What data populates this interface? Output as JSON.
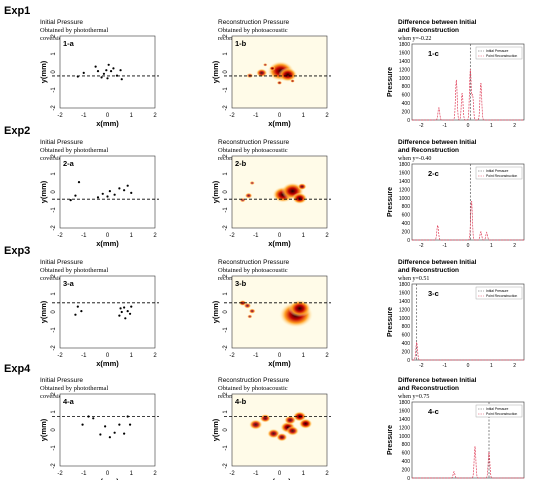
{
  "figure": {
    "experiments": [
      {
        "label": "Exp1",
        "initial": {
          "title": "Initial Pressure",
          "subtitle_lines": [
            "Obtained by photothermal",
            "coversion"
          ],
          "panel": "1-a"
        },
        "reconstruction": {
          "title": "Reconstruction Pressure",
          "subtitle_lines": [
            "Obtained by photoacoustic",
            "reconstruction"
          ],
          "panel": "1-b"
        },
        "difference": {
          "title_lines": [
            "Difference between Initial",
            "and Reconstruction"
          ],
          "note": "when y=-0.22",
          "panel": "1-c"
        },
        "line_y": -0.22,
        "points": [
          [
            -1.25,
            -0.25
          ],
          [
            -1.0,
            -0.05
          ],
          [
            -0.5,
            0.3
          ],
          [
            -0.4,
            0.05
          ],
          [
            -0.25,
            -0.3
          ],
          [
            -0.15,
            -0.1
          ],
          [
            -0.05,
            0.1
          ],
          [
            0.0,
            -0.35
          ],
          [
            0.05,
            0.4
          ],
          [
            0.15,
            0.05
          ],
          [
            0.25,
            0.2
          ],
          [
            0.4,
            -0.2
          ],
          [
            0.55,
            0.1
          ],
          [
            0.6,
            -0.4
          ]
        ],
        "blobs": [
          [
            -1.25,
            -0.2,
            0.09,
            0.7
          ],
          [
            -0.75,
            -0.05,
            0.15,
            0.9
          ],
          [
            -0.6,
            0.4,
            0.06,
            0.7
          ],
          [
            0.0,
            -0.6,
            0.07,
            0.8
          ],
          [
            0.05,
            0.05,
            0.35,
            1.0
          ],
          [
            0.35,
            -0.15,
            0.25,
            1.0
          ],
          [
            0.55,
            -0.5,
            0.06,
            0.8
          ],
          [
            -0.3,
            0.2,
            0.08,
            0.9
          ]
        ]
      },
      {
        "label": "Exp2",
        "initial": {
          "title": "Initial Pressure",
          "subtitle_lines": [
            "Obtained by photothermal",
            "coversion"
          ],
          "panel": "2-a"
        },
        "reconstruction": {
          "title": "Reconstruction Pressure",
          "subtitle_lines": [
            "Obtained by photoacoustic",
            "reconstruction"
          ],
          "panel": "2-b"
        },
        "difference": {
          "title_lines": [
            "Difference between Initial",
            "and Reconstruction"
          ],
          "note": "when y=-0.40",
          "panel": "2-c"
        },
        "line_y": -0.4,
        "points": [
          [
            -1.55,
            -0.45
          ],
          [
            -1.35,
            -0.2
          ],
          [
            -1.2,
            0.55
          ],
          [
            -0.4,
            -0.3
          ],
          [
            -0.2,
            -0.1
          ],
          [
            0.0,
            -0.25
          ],
          [
            0.1,
            0.05
          ],
          [
            0.3,
            -0.15
          ],
          [
            0.5,
            0.2
          ],
          [
            0.7,
            0.1
          ],
          [
            0.85,
            0.35
          ],
          [
            1.0,
            -0.05
          ]
        ],
        "blobs": [
          [
            -1.55,
            -0.45,
            0.08,
            0.7
          ],
          [
            -1.3,
            -0.2,
            0.1,
            0.8
          ],
          [
            -1.15,
            0.5,
            0.07,
            0.7
          ],
          [
            0.15,
            -0.15,
            0.28,
            1.0
          ],
          [
            0.55,
            0.05,
            0.3,
            1.0
          ],
          [
            0.85,
            -0.35,
            0.2,
            1.0
          ],
          [
            0.95,
            0.3,
            0.12,
            0.9
          ]
        ]
      },
      {
        "label": "Exp3",
        "initial": {
          "title": "Initial Pressure",
          "subtitle_lines": [
            "Obtained by photothermal",
            "coversion"
          ],
          "panel": "3-a"
        },
        "reconstruction": {
          "title": "Reconstruction Pressure",
          "subtitle_lines": [
            "Obtained by photoacoustic",
            "reconstruction"
          ],
          "panel": "3-b"
        },
        "difference": {
          "title_lines": [
            "Difference between Initial",
            "and Reconstruction"
          ],
          "note": "when y=0.51",
          "panel": "3-c"
        },
        "line_y": 0.51,
        "points": [
          [
            -1.35,
            -0.15
          ],
          [
            -1.1,
            0.05
          ],
          [
            -1.25,
            0.3
          ],
          [
            0.5,
            -0.2
          ],
          [
            0.6,
            0.0
          ],
          [
            0.75,
            -0.35
          ],
          [
            0.85,
            0.05
          ],
          [
            0.95,
            -0.1
          ],
          [
            0.7,
            0.25
          ],
          [
            1.0,
            0.3
          ],
          [
            0.55,
            0.2
          ]
        ],
        "blobs": [
          [
            -1.55,
            0.5,
            0.1,
            0.9
          ],
          [
            -1.35,
            0.35,
            0.1,
            0.8
          ],
          [
            -1.15,
            0.05,
            0.09,
            0.8
          ],
          [
            -1.25,
            -0.25,
            0.07,
            0.7
          ],
          [
            0.7,
            -0.15,
            0.45,
            1.0
          ],
          [
            0.85,
            0.2,
            0.3,
            1.0
          ]
        ]
      },
      {
        "label": "Exp4",
        "initial": {
          "title": "Initial Pressure",
          "subtitle_lines": [
            "Obtained by photothermal",
            "coversion"
          ],
          "panel": "4-a"
        },
        "reconstruction": {
          "title": "Reconstruction Pressure",
          "subtitle_lines": [
            "Obtained by photoacoustic",
            "reconstruction"
          ],
          "panel": "4-b"
        },
        "difference": {
          "title_lines": [
            "Difference between Initial",
            "and Reconstruction"
          ],
          "note": "when y=0.75",
          "panel": "4-c"
        },
        "line_y": 0.75,
        "points": [
          [
            -1.05,
            0.3
          ],
          [
            -0.8,
            0.75
          ],
          [
            -0.6,
            0.65
          ],
          [
            -0.3,
            -0.25
          ],
          [
            -0.1,
            0.2
          ],
          [
            0.1,
            -0.4
          ],
          [
            0.3,
            -0.15
          ],
          [
            0.5,
            0.3
          ],
          [
            0.7,
            -0.2
          ],
          [
            0.85,
            0.75
          ],
          [
            0.95,
            0.3
          ]
        ],
        "blobs": [
          [
            -1.0,
            0.3,
            0.18,
            0.9
          ],
          [
            -0.6,
            0.65,
            0.15,
            0.9
          ],
          [
            -0.25,
            -0.2,
            0.17,
            0.9
          ],
          [
            0.1,
            -0.4,
            0.15,
            0.9
          ],
          [
            0.35,
            0.15,
            0.2,
            1.0
          ],
          [
            0.55,
            -0.05,
            0.17,
            0.9
          ],
          [
            0.85,
            0.75,
            0.18,
            1.0
          ],
          [
            1.1,
            0.35,
            0.18,
            1.0
          ],
          [
            0.45,
            0.55,
            0.16,
            0.9
          ]
        ]
      }
    ],
    "axis_labels": {
      "x": "x(mm)",
      "y": "y(mm)",
      "pressure": "Pressure"
    },
    "legend": {
      "initial": "Initial Pressure",
      "reconstruction": "Point Reconstruction"
    },
    "colors": {
      "reconstruction_line": "#e0405a",
      "initial_line": "#555555",
      "heat_hot": "#ffffe0",
      "heat_mid": "#ff9a1a",
      "heat_low": "#c00000",
      "heat_core": "#220000"
    }
  },
  "chart_data": [
    {
      "type": "scatter",
      "panels": [
        "1-a",
        "2-a",
        "3-a",
        "4-a"
      ],
      "title": "Initial Pressure",
      "xlabel": "x(mm)",
      "ylabel": "y(mm)",
      "xlim": [
        -2,
        2
      ],
      "ylim": [
        2,
        -2
      ],
      "xticks": [
        -2,
        -1,
        0,
        1,
        2
      ],
      "yticks": [
        -2,
        -1,
        0,
        1,
        2
      ],
      "grid": false
    },
    {
      "type": "heatmap",
      "panels": [
        "1-b",
        "2-b",
        "3-b",
        "4-b"
      ],
      "title": "Reconstruction Pressure",
      "xlabel": "x(mm)",
      "ylabel": "y(mm)",
      "xlim": [
        -2,
        2
      ],
      "ylim": [
        2,
        -2
      ],
      "xticks": [
        -2,
        -1,
        0,
        1,
        2
      ],
      "yticks": [
        -2,
        -1,
        0,
        1,
        2
      ]
    },
    {
      "type": "line",
      "panel": "1-c",
      "xlabel": "",
      "ylabel": "Pressure",
      "xlim": [
        -2.4,
        2.4
      ],
      "ylim": [
        0,
        1800
      ],
      "yticks": [
        0,
        200,
        400,
        600,
        800,
        1000,
        1200,
        1400,
        1600,
        1800
      ],
      "xticks": [
        -2,
        -1,
        0,
        1,
        2
      ],
      "series": [
        {
          "name": "Initial Pressure",
          "x": [
            0.1,
            0.1
          ],
          "y": [
            0,
            1800
          ]
        },
        {
          "name": "Point Reconstruction",
          "peaks": [
            [
              -1.25,
              300
            ],
            [
              -0.5,
              950
            ],
            [
              -0.25,
              650
            ],
            [
              0.1,
              1200
            ],
            [
              0.2,
              580
            ],
            [
              0.55,
              900
            ]
          ]
        }
      ]
    },
    {
      "type": "line",
      "panel": "2-c",
      "xlabel": "",
      "ylabel": "Pressure",
      "xlim": [
        -2.4,
        2.4
      ],
      "ylim": [
        0,
        1800
      ],
      "yticks": [
        0,
        200,
        400,
        600,
        800,
        1000,
        1200,
        1400,
        1600,
        1800
      ],
      "xticks": [
        -2,
        -1,
        0,
        1,
        2
      ],
      "series": [
        {
          "name": "Initial Pressure",
          "x": [
            0.1,
            0.1
          ],
          "y": [
            0,
            1800
          ]
        },
        {
          "name": "Point Reconstruction",
          "peaks": [
            [
              -1.3,
              350
            ],
            [
              0.15,
              950
            ],
            [
              0.55,
              200
            ],
            [
              0.8,
              180
            ]
          ]
        }
      ]
    },
    {
      "type": "line",
      "panel": "3-c",
      "xlabel": "",
      "ylabel": "Pressure",
      "xlim": [
        -2.4,
        2.4
      ],
      "ylim": [
        0,
        1800
      ],
      "yticks": [
        0,
        200,
        400,
        600,
        800,
        1000,
        1200,
        1400,
        1600,
        1800
      ],
      "xticks": [
        -2,
        -1,
        0,
        1,
        2
      ],
      "series": [
        {
          "name": "Initial Pressure",
          "x": [
            -2.2,
            -2.2
          ],
          "y": [
            0,
            1800
          ]
        },
        {
          "name": "Point Reconstruction",
          "peaks": [
            [
              -2.2,
              420
            ]
          ]
        }
      ]
    },
    {
      "type": "line",
      "panel": "4-c",
      "xlabel": "",
      "ylabel": "Pressure",
      "xlim": [
        -2.4,
        2.4
      ],
      "ylim": [
        0,
        1800
      ],
      "yticks": [
        0,
        200,
        400,
        600,
        800,
        1000,
        1200,
        1400,
        1600,
        1800
      ],
      "xticks": [
        -2,
        -1,
        0,
        1,
        2
      ],
      "series": [
        {
          "name": "Initial Pressure",
          "x": [
            0.9,
            0.9
          ],
          "y": [
            0,
            1800
          ]
        },
        {
          "name": "Point Reconstruction",
          "peaks": [
            [
              -0.6,
              150
            ],
            [
              0.3,
              750
            ],
            [
              0.9,
              620
            ]
          ]
        }
      ]
    }
  ]
}
